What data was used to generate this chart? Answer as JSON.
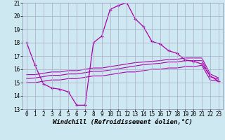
{
  "title": "",
  "xlabel": "Windchill (Refroidissement éolien,°C)",
  "ylabel": "",
  "bg_color": "#cde8f0",
  "grid_color": "#aaaacc",
  "line_color": "#aa00aa",
  "xlim": [
    -0.5,
    23.5
  ],
  "ylim": [
    13,
    21
  ],
  "xticks": [
    0,
    1,
    2,
    3,
    4,
    5,
    6,
    7,
    8,
    9,
    10,
    11,
    12,
    13,
    14,
    15,
    16,
    17,
    18,
    19,
    20,
    21,
    22,
    23
  ],
  "yticks": [
    13,
    14,
    15,
    16,
    17,
    18,
    19,
    20,
    21
  ],
  "series1_x": [
    0,
    1,
    2,
    3,
    4,
    5,
    6,
    7,
    8,
    9,
    10,
    11,
    12,
    13,
    14,
    15,
    16,
    17,
    18,
    19,
    20,
    21,
    22,
    23
  ],
  "series1_y": [
    18.0,
    16.3,
    14.9,
    14.6,
    14.5,
    14.3,
    13.3,
    13.3,
    18.0,
    18.5,
    20.5,
    20.8,
    21.0,
    19.8,
    19.2,
    18.1,
    17.9,
    17.4,
    17.2,
    16.7,
    16.6,
    16.4,
    15.5,
    15.1
  ],
  "series2_x": [
    0,
    1,
    2,
    3,
    4,
    5,
    6,
    7,
    8,
    9,
    10,
    11,
    12,
    13,
    14,
    15,
    16,
    17,
    18,
    19,
    20,
    21,
    22,
    23
  ],
  "series2_y": [
    15.0,
    15.0,
    15.1,
    15.2,
    15.2,
    15.3,
    15.3,
    15.4,
    15.5,
    15.5,
    15.6,
    15.7,
    15.8,
    15.8,
    15.9,
    16.0,
    16.0,
    16.1,
    16.1,
    16.2,
    16.2,
    16.3,
    15.2,
    15.1
  ],
  "series3_x": [
    0,
    1,
    2,
    3,
    4,
    5,
    6,
    7,
    8,
    9,
    10,
    11,
    12,
    13,
    14,
    15,
    16,
    17,
    18,
    19,
    20,
    21,
    22,
    23
  ],
  "series3_y": [
    15.3,
    15.35,
    15.45,
    15.55,
    15.55,
    15.65,
    15.65,
    15.75,
    15.85,
    15.85,
    15.95,
    16.05,
    16.15,
    16.25,
    16.35,
    16.4,
    16.45,
    16.55,
    16.55,
    16.65,
    16.65,
    16.65,
    15.45,
    15.25
  ],
  "series4_x": [
    0,
    1,
    2,
    3,
    4,
    5,
    6,
    7,
    8,
    9,
    10,
    11,
    12,
    13,
    14,
    15,
    16,
    17,
    18,
    19,
    20,
    21,
    22,
    23
  ],
  "series4_y": [
    15.6,
    15.6,
    15.7,
    15.8,
    15.8,
    15.9,
    15.9,
    16.0,
    16.1,
    16.1,
    16.2,
    16.3,
    16.4,
    16.5,
    16.55,
    16.6,
    16.65,
    16.75,
    16.75,
    16.85,
    16.85,
    16.85,
    15.65,
    15.35
  ],
  "xlabel_fontsize": 6.5,
  "tick_fontsize": 5.5
}
